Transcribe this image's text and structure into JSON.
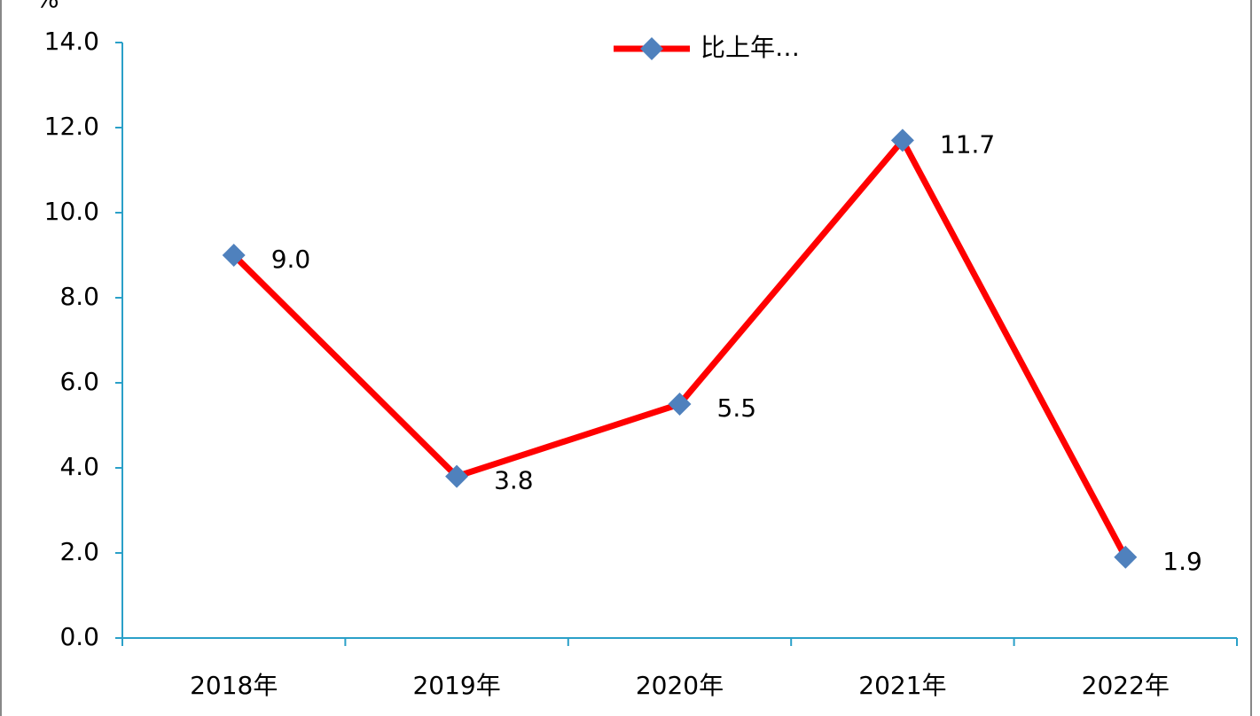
{
  "chart_data": {
    "type": "line",
    "y_label": "%",
    "categories": [
      "2018年",
      "2019年",
      "2020年",
      "2021年",
      "2022年"
    ],
    "series": [
      {
        "name": "比上年…",
        "color": "#ff0000",
        "marker_color": "#4f81bd",
        "values": [
          9.0,
          3.8,
          5.5,
          11.7,
          1.9
        ],
        "value_labels": [
          "9.0",
          "3.8",
          "5.5",
          "11.7",
          "1.9"
        ]
      }
    ],
    "ylim": [
      0,
      14
    ],
    "yticks": [
      {
        "value": 0,
        "label": "0.0"
      },
      {
        "value": 2,
        "label": "2.0"
      },
      {
        "value": 4,
        "label": "4.0"
      },
      {
        "value": 6,
        "label": "6.0"
      },
      {
        "value": 8,
        "label": "8.0"
      },
      {
        "value": 10,
        "label": "10.0"
      },
      {
        "value": 12,
        "label": "12.0"
      },
      {
        "value": 14,
        "label": "14.0"
      }
    ],
    "legend": "top"
  }
}
